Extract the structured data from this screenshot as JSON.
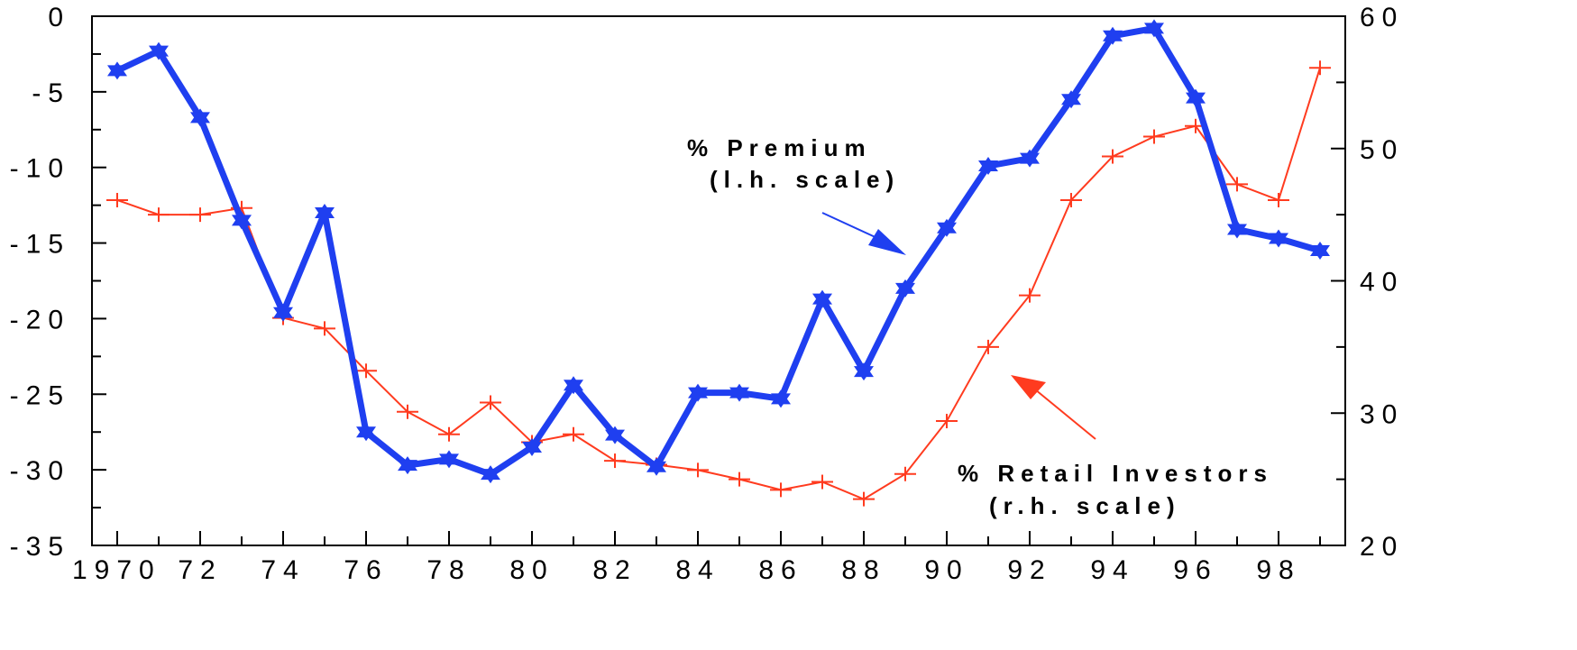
{
  "chart_data": {
    "type": "line",
    "x": [
      "1970",
      "1971",
      "1972",
      "1973",
      "1974",
      "1975",
      "1976",
      "1977",
      "1978",
      "1979",
      "1980",
      "1981",
      "1982",
      "1983",
      "1984",
      "1985",
      "1986",
      "1987",
      "1988",
      "1989",
      "1990",
      "1991",
      "1992",
      "1993",
      "1994",
      "1995",
      "1996",
      "1997",
      "1998",
      "1999"
    ],
    "x_tick_labels": [
      "1970",
      "72",
      "74",
      "76",
      "78",
      "80",
      "82",
      "84",
      "86",
      "88",
      "90",
      "92",
      "94",
      "96",
      "98"
    ],
    "y_left": {
      "ylim": [
        -35,
        0
      ],
      "ticks": [
        0,
        -5,
        -10,
        -15,
        -20,
        -25,
        -30,
        -35
      ],
      "tick_labels": [
        "0",
        "-5",
        "-10",
        "-15",
        "-20",
        "-25",
        "-30",
        "-35"
      ]
    },
    "y_right": {
      "ylim": [
        20,
        60
      ],
      "ticks": [
        20,
        30,
        40,
        50,
        60
      ],
      "tick_labels": [
        "20",
        "30",
        "40",
        "50",
        "60"
      ]
    },
    "series": [
      {
        "name": "% Premium (l.h. scale)",
        "axis": "left",
        "color": "#1f3ff0",
        "values": [
          -3.6,
          -2.3,
          -6.7,
          -13.5,
          -19.6,
          -13.0,
          -27.5,
          -29.7,
          -29.3,
          -30.3,
          -28.5,
          -24.4,
          -27.7,
          -29.8,
          -24.9,
          -24.9,
          -25.3,
          -18.7,
          -23.5,
          -18.0,
          -14.0,
          -9.9,
          -9.4,
          -5.5,
          -1.3,
          -0.8,
          -5.4,
          -14.1,
          -14.7,
          -15.5
        ]
      },
      {
        "name": "% Retail Investors (r.h. scale)",
        "axis": "right",
        "color": "#ff3b1f",
        "values": [
          46.1,
          45.0,
          45.0,
          45.5,
          37.2,
          36.4,
          33.2,
          30.1,
          28.4,
          30.8,
          27.8,
          28.4,
          26.4,
          26.1,
          25.7,
          25.0,
          24.2,
          24.8,
          23.5,
          25.4,
          29.4,
          35.0,
          38.9,
          46.1,
          49.4,
          50.9,
          51.7,
          47.3,
          46.1,
          56.1
        ]
      }
    ],
    "annotations": {
      "premium_line1": "% Premium",
      "premium_line2": "(l.h. scale)",
      "retail_line1": "% Retail Investors",
      "retail_line2": "(r.h. scale)"
    },
    "grid": false
  }
}
